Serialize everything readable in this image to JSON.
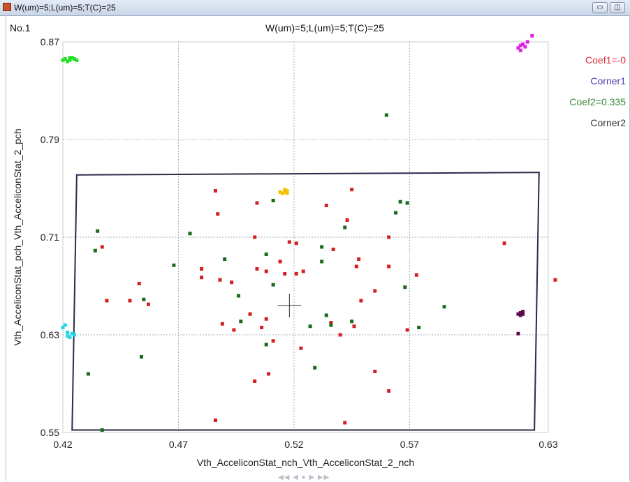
{
  "window": {
    "title": "W(um)=5;L(um)=5;T(C)=25",
    "minimize_icon": "minimize-icon",
    "restore_icon": "restore-icon"
  },
  "plot_number": "No.1",
  "nav_icons": "◀◀ ◀ ● ▶ ▶▶",
  "chart_data": {
    "type": "scatter",
    "title": "W(um)=5;L(um)=5;T(C)=25",
    "xlabel": "Vth_AcceliconStat_nch_Vth_AcceliconStat_2_nch",
    "ylabel": "Vth_AcceliconStat_pch_Vth_AcceliconStat_2_pch",
    "xlim": [
      0.42,
      0.63
    ],
    "ylim": [
      0.55,
      0.87
    ],
    "xticks": [
      "0.42",
      "0.47",
      "0.52",
      "0.57",
      "0.63"
    ],
    "yticks": [
      "0.55",
      "0.63",
      "0.71",
      "0.79",
      "0.87"
    ],
    "grid": true,
    "legend_position": "right",
    "legend": [
      {
        "label": "Coef1=-0",
        "color": "#e0303a"
      },
      {
        "label": "Corner1",
        "color": "#4a3db0"
      },
      {
        "label": "Coef2=0.335",
        "color": "#3a8a3a"
      },
      {
        "label": "Corner2",
        "color": "#333333"
      }
    ],
    "center_marker": {
      "x": 0.518,
      "y": 0.654
    },
    "boundary_polygon": [
      [
        0.426,
        0.761
      ],
      [
        0.626,
        0.763
      ],
      [
        0.624,
        0.552
      ],
      [
        0.424,
        0.552
      ]
    ],
    "series": [
      {
        "color": "#d42020",
        "points": [
          [
            0.486,
            0.748
          ],
          [
            0.487,
            0.729
          ],
          [
            0.504,
            0.738
          ],
          [
            0.545,
            0.749
          ],
          [
            0.534,
            0.736
          ],
          [
            0.543,
            0.724
          ],
          [
            0.503,
            0.71
          ],
          [
            0.518,
            0.706
          ],
          [
            0.521,
            0.705
          ],
          [
            0.537,
            0.7
          ],
          [
            0.548,
            0.692
          ],
          [
            0.561,
            0.71
          ],
          [
            0.611,
            0.705
          ],
          [
            0.48,
            0.684
          ],
          [
            0.48,
            0.677
          ],
          [
            0.488,
            0.675
          ],
          [
            0.493,
            0.673
          ],
          [
            0.504,
            0.684
          ],
          [
            0.508,
            0.682
          ],
          [
            0.514,
            0.69
          ],
          [
            0.516,
            0.68
          ],
          [
            0.521,
            0.68
          ],
          [
            0.524,
            0.682
          ],
          [
            0.547,
            0.686
          ],
          [
            0.561,
            0.686
          ],
          [
            0.573,
            0.679
          ],
          [
            0.633,
            0.675
          ],
          [
            0.453,
            0.672
          ],
          [
            0.439,
            0.658
          ],
          [
            0.449,
            0.658
          ],
          [
            0.457,
            0.655
          ],
          [
            0.437,
            0.702
          ],
          [
            0.501,
            0.647
          ],
          [
            0.508,
            0.643
          ],
          [
            0.549,
            0.658
          ],
          [
            0.555,
            0.666
          ],
          [
            0.489,
            0.639
          ],
          [
            0.494,
            0.634
          ],
          [
            0.506,
            0.636
          ],
          [
            0.536,
            0.64
          ],
          [
            0.54,
            0.63
          ],
          [
            0.546,
            0.637
          ],
          [
            0.569,
            0.634
          ],
          [
            0.511,
            0.625
          ],
          [
            0.523,
            0.619
          ],
          [
            0.509,
            0.598
          ],
          [
            0.503,
            0.592
          ],
          [
            0.555,
            0.6
          ],
          [
            0.561,
            0.584
          ],
          [
            0.486,
            0.56
          ],
          [
            0.542,
            0.558
          ]
        ]
      },
      {
        "color": "#1a6a1a",
        "points": [
          [
            0.56,
            0.81
          ],
          [
            0.511,
            0.74
          ],
          [
            0.566,
            0.739
          ],
          [
            0.569,
            0.738
          ],
          [
            0.564,
            0.73
          ],
          [
            0.542,
            0.718
          ],
          [
            0.435,
            0.715
          ],
          [
            0.475,
            0.713
          ],
          [
            0.532,
            0.702
          ],
          [
            0.508,
            0.696
          ],
          [
            0.49,
            0.692
          ],
          [
            0.532,
            0.69
          ],
          [
            0.468,
            0.687
          ],
          [
            0.511,
            0.671
          ],
          [
            0.568,
            0.669
          ],
          [
            0.496,
            0.662
          ],
          [
            0.455,
            0.659
          ],
          [
            0.585,
            0.653
          ],
          [
            0.534,
            0.646
          ],
          [
            0.497,
            0.641
          ],
          [
            0.536,
            0.638
          ],
          [
            0.527,
            0.637
          ],
          [
            0.545,
            0.641
          ],
          [
            0.574,
            0.636
          ],
          [
            0.434,
            0.699
          ],
          [
            0.508,
            0.622
          ],
          [
            0.454,
            0.612
          ],
          [
            0.529,
            0.603
          ],
          [
            0.431,
            0.598
          ],
          [
            0.437,
            0.552
          ]
        ]
      },
      {
        "color": "#22e022",
        "points": [
          [
            0.421,
            0.856
          ],
          [
            0.423,
            0.855
          ],
          [
            0.425,
            0.856
          ],
          [
            0.422,
            0.854
          ],
          [
            0.424,
            0.857
          ],
          [
            0.42,
            0.855
          ],
          [
            0.426,
            0.855
          ],
          [
            0.423,
            0.857
          ]
        ]
      },
      {
        "color": "#e020e0",
        "points": [
          [
            0.62,
            0.866
          ],
          [
            0.618,
            0.863
          ],
          [
            0.619,
            0.868
          ],
          [
            0.617,
            0.865
          ],
          [
            0.621,
            0.87
          ],
          [
            0.623,
            0.875
          ],
          [
            0.618,
            0.867
          ]
        ]
      },
      {
        "color": "#f5c000",
        "points": [
          [
            0.516,
            0.747
          ],
          [
            0.517,
            0.748
          ],
          [
            0.515,
            0.746
          ],
          [
            0.517,
            0.746
          ],
          [
            0.516,
            0.749
          ],
          [
            0.514,
            0.747
          ]
        ]
      },
      {
        "color": "#22d8e8",
        "points": [
          [
            0.421,
            0.638
          ],
          [
            0.422,
            0.632
          ],
          [
            0.423,
            0.628
          ],
          [
            0.424,
            0.631
          ],
          [
            0.422,
            0.629
          ],
          [
            0.425,
            0.63
          ],
          [
            0.42,
            0.636
          ]
        ]
      },
      {
        "color": "#5a0a4a",
        "points": [
          [
            0.618,
            0.648
          ],
          [
            0.619,
            0.649
          ],
          [
            0.617,
            0.647
          ],
          [
            0.618,
            0.646
          ],
          [
            0.619,
            0.647
          ],
          [
            0.617,
            0.631
          ]
        ]
      }
    ]
  }
}
